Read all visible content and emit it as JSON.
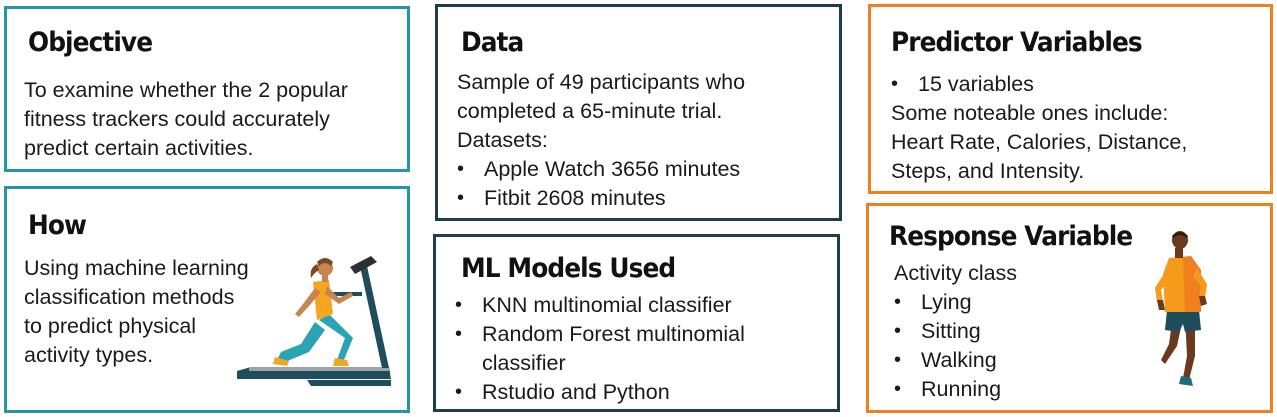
{
  "objective": {
    "title": "Objective",
    "lines": [
      "To examine whether the 2 popular",
      "fitness trackers could accurately",
      "predict certain activities."
    ]
  },
  "how": {
    "title": "How",
    "lines": [
      "Using machine learning",
      "classification methods",
      "to predict physical",
      "activity types."
    ],
    "illustration_icon": "woman-running-on-treadmill-icon"
  },
  "data_card": {
    "title": "Data",
    "lines": [
      "Sample of 49 participants who",
      "completed a 65-minute trial.",
      "Datasets:"
    ],
    "bullets": [
      "Apple Watch 3656 minutes",
      "Fitbit 2608 minutes"
    ]
  },
  "ml_models": {
    "title": "ML Models Used",
    "bullets": [
      "KNN multinomial classifier",
      "Random Forest multinomial",
      "Rstudio and Python"
    ],
    "bullet_continuation": "classifier"
  },
  "predictor": {
    "title": "Predictor Variables",
    "bullets": [
      "15 variables"
    ],
    "lines": [
      "Some noteable ones include:",
      "Heart Rate, Calories, Distance,",
      "Steps, and Intensity."
    ]
  },
  "response": {
    "title": "Response Variable",
    "subtitle": "Activity class",
    "bullets": [
      "Lying",
      "Sitting",
      "Walking",
      "Running"
    ],
    "illustration_icon": "man-running-icon"
  },
  "colors": {
    "teal_border": "#2596a8",
    "navy_border": "#1d3d48",
    "orange_border": "#f07f1e"
  }
}
